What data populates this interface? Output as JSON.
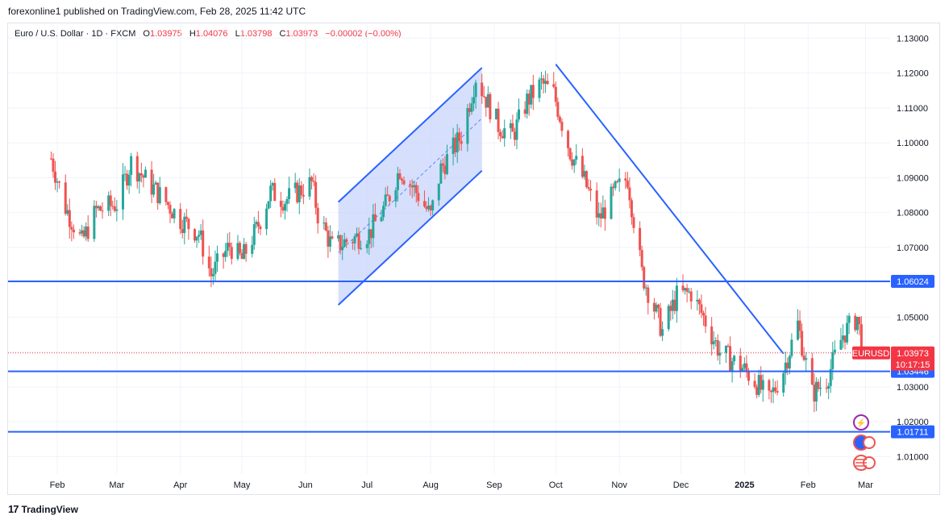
{
  "header": {
    "published": "forexonline1 published on TradingView.com, Feb 28, 2025 11:42 UTC"
  },
  "legend": {
    "symbol": "Euro / U.S. Dollar · 1D · FXCM",
    "o_label": "O",
    "o": "1.03975",
    "h_label": "H",
    "h": "1.04076",
    "l_label": "L",
    "l": "1.03798",
    "c_label": "C",
    "c": "1.03973",
    "change": "−0.00002 (−0.00%)"
  },
  "footer": {
    "brand": "TradingView",
    "logo": "17"
  },
  "colors": {
    "up": "#26a69a",
    "down": "#ef5350",
    "line": "#2962ff",
    "channel_fill": "#c8d4fb",
    "price_label": "#f23645",
    "level_label": "#2962ff"
  },
  "chart_data": {
    "type": "candlestick",
    "symbol": "EURUSD",
    "timeframe": "1D",
    "y_axis": {
      "min": 1.005,
      "max": 1.134,
      "ticks": [
        "1.13000",
        "1.12000",
        "1.11000",
        "1.10000",
        "1.09000",
        "1.08000",
        "1.07000",
        "1.06000",
        "1.05000",
        "1.04000",
        "1.03000",
        "1.02000",
        "1.01000"
      ]
    },
    "x_axis": {
      "labels": [
        "Feb",
        "Mar",
        "Apr",
        "May",
        "Jun",
        "Jul",
        "Aug",
        "Sep",
        "Oct",
        "Nov",
        "Dec",
        "2025",
        "Feb",
        "Mar"
      ]
    },
    "close_path": [
      [
        "2024-01-29",
        1.0955
      ],
      [
        "2024-02-05",
        1.0815
      ],
      [
        "2024-02-13",
        1.0715
      ],
      [
        "2024-02-20",
        1.0805
      ],
      [
        "2024-03-01",
        1.0825
      ],
      [
        "2024-03-08",
        1.0945
      ],
      [
        "2024-03-15",
        1.0895
      ],
      [
        "2024-03-25",
        1.083
      ],
      [
        "2024-04-01",
        1.078
      ],
      [
        "2024-04-10",
        1.074
      ],
      [
        "2024-04-16",
        1.062
      ],
      [
        "2024-04-25",
        1.0705
      ],
      [
        "2024-05-01",
        1.0665
      ],
      [
        "2024-05-08",
        1.075
      ],
      [
        "2024-05-15",
        1.086
      ],
      [
        "2024-05-22",
        1.0835
      ],
      [
        "2024-06-04",
        1.0885
      ],
      [
        "2024-06-07",
        1.0795
      ],
      [
        "2024-06-14",
        1.07
      ],
      [
        "2024-06-24",
        1.0725
      ],
      [
        "2024-07-02",
        1.074
      ],
      [
        "2024-07-10",
        1.082
      ],
      [
        "2024-07-17",
        1.0925
      ],
      [
        "2024-07-26",
        1.085
      ],
      [
        "2024-08-01",
        1.079
      ],
      [
        "2024-08-06",
        1.0925
      ],
      [
        "2024-08-16",
        1.102
      ],
      [
        "2024-08-23",
        1.119
      ],
      [
        "2024-09-03",
        1.105
      ],
      [
        "2024-09-10",
        1.102
      ],
      [
        "2024-09-17",
        1.112
      ],
      [
        "2024-09-24",
        1.117
      ],
      [
        "2024-09-30",
        1.114
      ],
      [
        "2024-10-08",
        1.0975
      ],
      [
        "2024-10-15",
        1.089
      ],
      [
        "2024-10-22",
        1.078
      ],
      [
        "2024-10-30",
        1.086
      ],
      [
        "2024-11-05",
        1.09
      ],
      [
        "2024-11-12",
        1.0625
      ],
      [
        "2024-11-22",
        1.046
      ],
      [
        "2024-11-29",
        1.056
      ],
      [
        "2024-12-06",
        1.057
      ],
      [
        "2024-12-12",
        1.05
      ],
      [
        "2024-12-20",
        1.04
      ],
      [
        "2024-12-31",
        1.0355
      ],
      [
        "2025-01-07",
        1.031
      ],
      [
        "2025-01-13",
        1.026
      ],
      [
        "2025-01-20",
        1.035
      ],
      [
        "2025-01-27",
        1.048
      ],
      [
        "2025-02-03",
        1.028
      ],
      [
        "2025-02-10",
        1.032
      ],
      [
        "2025-02-18",
        1.045
      ],
      [
        "2025-02-25",
        1.05
      ],
      [
        "2025-02-28",
        1.03973
      ]
    ],
    "horizontal_levels": [
      {
        "price": 1.06024,
        "label": "1.06024"
      },
      {
        "price": 1.03446,
        "label": "1.03446"
      },
      {
        "price": 1.01711,
        "label": "1.01711"
      }
    ],
    "trendlines": [
      {
        "name": "descending",
        "from": [
          "2024-10-01",
          1.1225
        ],
        "to": [
          "2025-01-20",
          1.0395
        ]
      }
    ],
    "ascending_channel": {
      "upper": {
        "from": [
          "2024-06-17",
          1.083
        ],
        "to": [
          "2024-08-26",
          1.1215
        ]
      },
      "lower": {
        "from": [
          "2024-06-17",
          1.0535
        ],
        "to": [
          "2024-08-26",
          1.092
        ]
      },
      "mid_dashed": {
        "from": [
          "2024-06-17",
          1.0685
        ],
        "to": [
          "2024-08-26",
          1.107
        ]
      }
    },
    "last_price": {
      "ticker": "EURUSD",
      "price": "1.03973",
      "countdown": "10:17:15"
    }
  }
}
